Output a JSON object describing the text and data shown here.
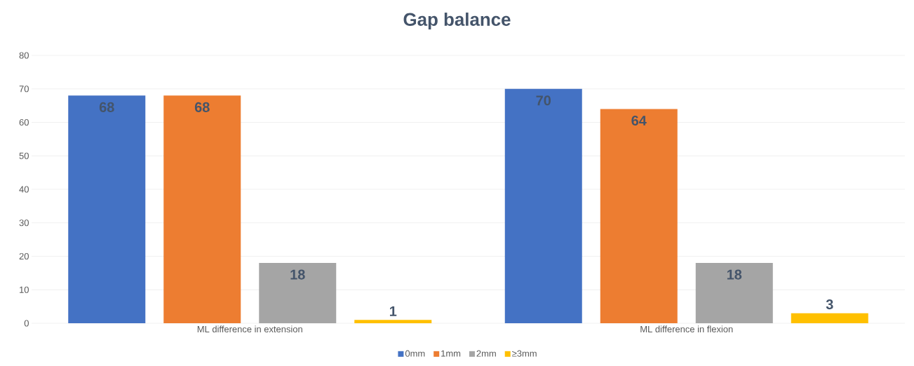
{
  "chart_data": {
    "type": "bar",
    "title": "Gap balance",
    "categories": [
      "ML difference in extension",
      "ML difference in flexion"
    ],
    "series": [
      {
        "name": "0mm",
        "color": "#4472c4",
        "values": [
          68,
          70
        ]
      },
      {
        "name": "1mm",
        "color": "#ed7d31",
        "values": [
          68,
          64
        ]
      },
      {
        "name": "2mm",
        "color": "#a5a5a5",
        "values": [
          18,
          18
        ]
      },
      {
        "name": "≥3mm",
        "color": "#ffc000",
        "values": [
          1,
          3
        ]
      }
    ],
    "ylim": [
      0,
      80
    ],
    "yticks": [
      0,
      10,
      20,
      30,
      40,
      50,
      60,
      70,
      80
    ],
    "grid": "y",
    "legend": "bottom",
    "data_labels": true
  }
}
